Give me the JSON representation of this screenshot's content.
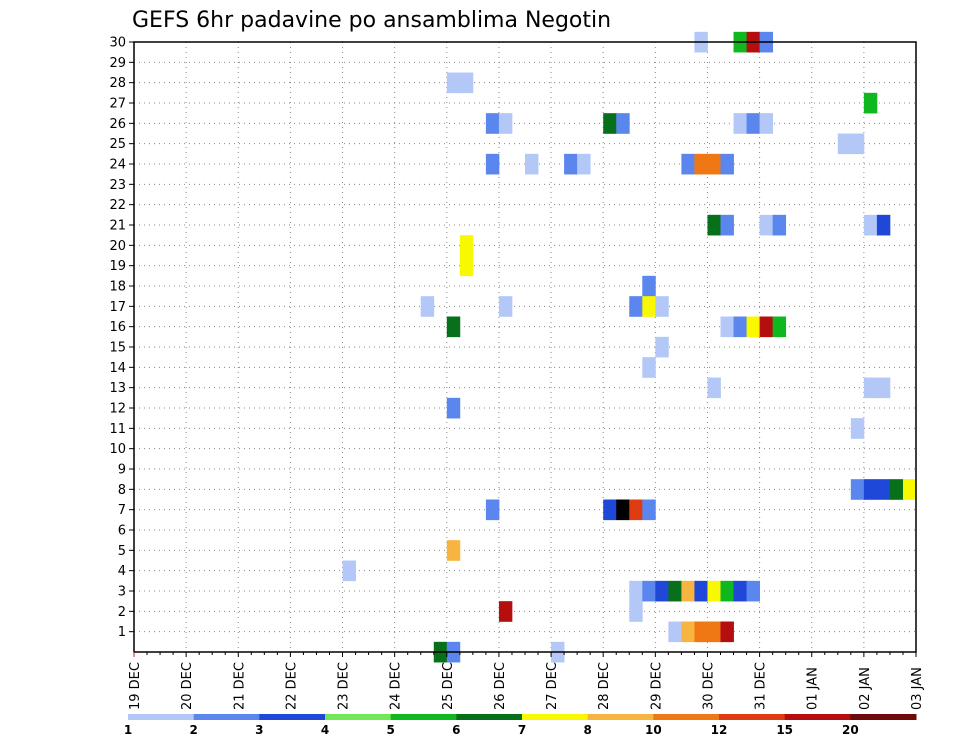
{
  "chart_data": {
    "type": "heatmap",
    "title": "GEFS 6hr padavine po ansamblima Negotin",
    "x_ticks": [
      "19 DEC",
      "20 DEC",
      "21 DEC",
      "22 DEC",
      "23 DEC",
      "24 DEC",
      "25 DEC",
      "26 DEC",
      "27 DEC",
      "28 DEC",
      "29 DEC",
      "30 DEC",
      "31 DEC",
      "01 JAN",
      "02 JAN",
      "03 JAN"
    ],
    "y_ticks": [
      "1",
      "2",
      "3",
      "4",
      "5",
      "6",
      "7",
      "8",
      "9",
      "10",
      "11",
      "12",
      "13",
      "14",
      "15",
      "16",
      "17",
      "18",
      "19",
      "20",
      "21",
      "22",
      "23",
      "24",
      "25",
      "26",
      "27",
      "28",
      "29",
      "30"
    ],
    "x_range": [
      "19 DEC",
      "03 JAN"
    ],
    "y_range": [
      0,
      30
    ],
    "steps_per_day": 4,
    "grid": true,
    "colorbar": {
      "labels": [
        "1",
        "2",
        "3",
        "4",
        "5",
        "6",
        "7",
        "8",
        "10",
        "12",
        "15",
        "20"
      ],
      "colors": [
        "#b4c8f8",
        "#5a86ee",
        "#1f48d8",
        "#72e858",
        "#10b820",
        "#08701a",
        "#f8f800",
        "#f8b440",
        "#f07814",
        "#e03c14",
        "#b40e0e",
        "#6e0a0a"
      ],
      "legend_position": "bottom"
    },
    "cells": [
      {
        "member": 30,
        "time": "29 DEC 18Z",
        "level": 1
      },
      {
        "member": 30,
        "time": "30 DEC 12Z",
        "level": 5
      },
      {
        "member": 30,
        "time": "30 DEC 18Z",
        "level": 11
      },
      {
        "member": 30,
        "time": "31 DEC 00Z",
        "level": 2
      },
      {
        "member": 28,
        "time": "25 DEC 00Z",
        "level": 1
      },
      {
        "member": 28,
        "time": "25 DEC 06Z",
        "level": 1
      },
      {
        "member": 27,
        "time": "02 JAN 00Z",
        "level": 5
      },
      {
        "member": 26,
        "time": "25 DEC 18Z",
        "level": 2
      },
      {
        "member": 26,
        "time": "26 DEC 00Z",
        "level": 1
      },
      {
        "member": 26,
        "time": "28 DEC 00Z",
        "level": 6
      },
      {
        "member": 26,
        "time": "28 DEC 06Z",
        "level": 2
      },
      {
        "member": 26,
        "time": "30 DEC 12Z",
        "level": 1
      },
      {
        "member": 26,
        "time": "30 DEC 18Z",
        "level": 2
      },
      {
        "member": 26,
        "time": "31 DEC 00Z",
        "level": 1
      },
      {
        "member": 25,
        "time": "01 JAN 12Z",
        "level": 1
      },
      {
        "member": 25,
        "time": "01 JAN 18Z",
        "level": 1
      },
      {
        "member": 24,
        "time": "25 DEC 18Z",
        "level": 2
      },
      {
        "member": 24,
        "time": "26 DEC 12Z",
        "level": 1
      },
      {
        "member": 24,
        "time": "27 DEC 06Z",
        "level": 2
      },
      {
        "member": 24,
        "time": "27 DEC 12Z",
        "level": 1
      },
      {
        "member": 24,
        "time": "29 DEC 12Z",
        "level": 2
      },
      {
        "member": 24,
        "time": "29 DEC 18Z",
        "level": 9
      },
      {
        "member": 24,
        "time": "30 DEC 00Z",
        "level": 9
      },
      {
        "member": 24,
        "time": "30 DEC 06Z",
        "level": 2
      },
      {
        "member": 21,
        "time": "30 DEC 00Z",
        "level": 6
      },
      {
        "member": 21,
        "time": "30 DEC 06Z",
        "level": 2
      },
      {
        "member": 21,
        "time": "31 DEC 00Z",
        "level": 1
      },
      {
        "member": 21,
        "time": "31 DEC 06Z",
        "level": 2
      },
      {
        "member": 21,
        "time": "02 JAN 00Z",
        "level": 1
      },
      {
        "member": 21,
        "time": "02 JAN 06Z",
        "level": 3
      },
      {
        "member": 20,
        "time": "25 DEC 06Z",
        "level": 7
      },
      {
        "member": 19,
        "time": "25 DEC 06Z",
        "level": 7
      },
      {
        "member": 18,
        "time": "28 DEC 18Z",
        "level": 2
      },
      {
        "member": 17,
        "time": "24 DEC 12Z",
        "level": 1
      },
      {
        "member": 17,
        "time": "26 DEC 00Z",
        "level": 1
      },
      {
        "member": 17,
        "time": "28 DEC 12Z",
        "level": 2
      },
      {
        "member": 17,
        "time": "28 DEC 18Z",
        "level": 7
      },
      {
        "member": 17,
        "time": "29 DEC 00Z",
        "level": 1
      },
      {
        "member": 16,
        "time": "25 DEC 00Z",
        "level": 6
      },
      {
        "member": 16,
        "time": "30 DEC 06Z",
        "level": 1
      },
      {
        "member": 16,
        "time": "30 DEC 12Z",
        "level": 2
      },
      {
        "member": 16,
        "time": "30 DEC 18Z",
        "level": 7
      },
      {
        "member": 16,
        "time": "31 DEC 00Z",
        "level": 11
      },
      {
        "member": 16,
        "time": "31 DEC 06Z",
        "level": 5
      },
      {
        "member": 15,
        "time": "29 DEC 00Z",
        "level": 1
      },
      {
        "member": 14,
        "time": "28 DEC 18Z",
        "level": 1
      },
      {
        "member": 13,
        "time": "30 DEC 00Z",
        "level": 1
      },
      {
        "member": 13,
        "time": "02 JAN 00Z",
        "level": 1
      },
      {
        "member": 13,
        "time": "02 JAN 06Z",
        "level": 1
      },
      {
        "member": 12,
        "time": "25 DEC 00Z",
        "level": 2
      },
      {
        "member": 11,
        "time": "01 JAN 18Z",
        "level": 1
      },
      {
        "member": 8,
        "time": "01 JAN 18Z",
        "level": 2
      },
      {
        "member": 8,
        "time": "02 JAN 00Z",
        "level": 3
      },
      {
        "member": 8,
        "time": "02 JAN 06Z",
        "level": 3
      },
      {
        "member": 8,
        "time": "02 JAN 12Z",
        "level": 6
      },
      {
        "member": 8,
        "time": "02 JAN 18Z",
        "level": 7
      },
      {
        "member": 7,
        "time": "25 DEC 18Z",
        "level": 2
      },
      {
        "member": 7,
        "time": "28 DEC 00Z",
        "level": 3
      },
      {
        "member": 7,
        "time": "28 DEC 06Z",
        "level": 13
      },
      {
        "member": 7,
        "time": "28 DEC 12Z",
        "level": 10
      },
      {
        "member": 7,
        "time": "28 DEC 18Z",
        "level": 2
      },
      {
        "member": 5,
        "time": "25 DEC 00Z",
        "level": 8
      },
      {
        "member": 4,
        "time": "23 DEC 00Z",
        "level": 1
      },
      {
        "member": 3,
        "time": "28 DEC 12Z",
        "level": 1
      },
      {
        "member": 3,
        "time": "28 DEC 18Z",
        "level": 2
      },
      {
        "member": 3,
        "time": "29 DEC 00Z",
        "level": 3
      },
      {
        "member": 3,
        "time": "29 DEC 06Z",
        "level": 6
      },
      {
        "member": 3,
        "time": "29 DEC 12Z",
        "level": 8
      },
      {
        "member": 3,
        "time": "29 DEC 18Z",
        "level": 3
      },
      {
        "member": 3,
        "time": "30 DEC 00Z",
        "level": 7
      },
      {
        "member": 3,
        "time": "30 DEC 06Z",
        "level": 5
      },
      {
        "member": 3,
        "time": "30 DEC 12Z",
        "level": 3
      },
      {
        "member": 3,
        "time": "30 DEC 18Z",
        "level": 2
      },
      {
        "member": 2,
        "time": "26 DEC 00Z",
        "level": 11
      },
      {
        "member": 2,
        "time": "28 DEC 12Z",
        "level": 1
      },
      {
        "member": 1,
        "time": "29 DEC 06Z",
        "level": 1
      },
      {
        "member": 1,
        "time": "29 DEC 12Z",
        "level": 8
      },
      {
        "member": 1,
        "time": "29 DEC 18Z",
        "level": 9
      },
      {
        "member": 1,
        "time": "30 DEC 00Z",
        "level": 9
      },
      {
        "member": 1,
        "time": "30 DEC 06Z",
        "level": 11
      },
      {
        "member": 0,
        "time": "24 DEC 18Z",
        "level": 6
      },
      {
        "member": 0,
        "time": "25 DEC 00Z",
        "level": 2
      },
      {
        "member": 0,
        "time": "27 DEC 00Z",
        "level": 1
      }
    ]
  }
}
